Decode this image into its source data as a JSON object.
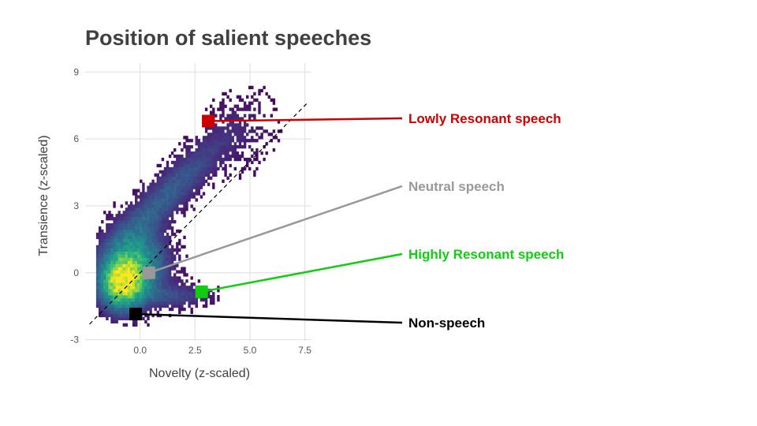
{
  "chart_data": {
    "type": "heatmap",
    "title": "Position of salient speeches",
    "xlabel": "Novelty (z-scaled)",
    "ylabel": "Transience (z-scaled)",
    "xlim": [
      -2.5,
      7.8
    ],
    "ylim": [
      -3.05,
      9.4
    ],
    "xticks": [
      0.0,
      2.5,
      5.0,
      7.5
    ],
    "xtick_labels": [
      "0.0",
      "2.5",
      "5.0",
      "7.5"
    ],
    "yticks": [
      -3,
      0,
      3,
      6,
      9
    ],
    "ytick_labels": [
      "-3",
      "0",
      "3",
      "6",
      "9"
    ],
    "grid": true,
    "density_colormap": "viridis",
    "reference_line": {
      "style": "dashed",
      "color": "#000000",
      "slope": 1,
      "intercept": 0
    },
    "density_notes": "2D histogram of speeches; densest (yellow) near novelty -1, transience -0.5; sparse purple points extending up to about novelty 6.5, transience 8.7",
    "highlighted_points": [
      {
        "label": "Lowly Resonant speech",
        "x": 3.1,
        "y": 6.8,
        "color": "#cc0000"
      },
      {
        "label": "Neutral speech",
        "x": 0.4,
        "y": 0.0,
        "color": "#999999"
      },
      {
        "label": "Highly Resonant speech",
        "x": 2.8,
        "y": -0.85,
        "color": "#11cc11"
      },
      {
        "label": "Non-speech",
        "x": -0.2,
        "y": -1.85,
        "color": "#000000"
      }
    ]
  }
}
